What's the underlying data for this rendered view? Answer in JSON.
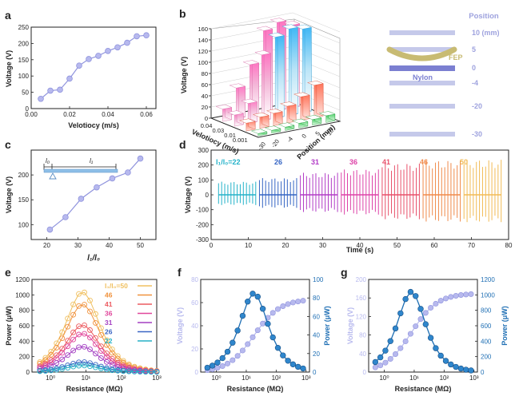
{
  "panels": {
    "a": {
      "label": "a"
    },
    "b": {
      "label": "b"
    },
    "c": {
      "label": "c"
    },
    "d": {
      "label": "d"
    },
    "e": {
      "label": "e"
    },
    "f": {
      "label": "f"
    },
    "g": {
      "label": "g"
    }
  },
  "colors": {
    "lavender": "#b7b9ee",
    "lavender_edge": "#8f93dd",
    "blue": "#1f6fb4",
    "legend_gray": "#c5c9ea"
  },
  "chart_data": [
    {
      "id": "a",
      "type": "line",
      "xlabel": "Velotiocy (m/s)",
      "ylabel": "Voltage (V)",
      "xlim": [
        0,
        0.065
      ],
      "ylim": [
        0,
        250
      ],
      "xticks": [
        "0.00",
        "0.02",
        "0.04",
        "0.06"
      ],
      "yticks": [
        "0",
        "50",
        "100",
        "150",
        "200",
        "250"
      ],
      "x": [
        0.005,
        0.01,
        0.015,
        0.02,
        0.025,
        0.03,
        0.035,
        0.04,
        0.045,
        0.05,
        0.055,
        0.06
      ],
      "y": [
        30,
        55,
        58,
        92,
        132,
        152,
        162,
        177,
        188,
        202,
        222,
        225
      ]
    },
    {
      "id": "b",
      "type": "bar3d",
      "xlabel": "Velotiocy (m/s)",
      "ylabel": "Position (mm)",
      "zlabel": "Voltage (V)",
      "zticks": [
        "0",
        "20",
        "40",
        "60",
        "80",
        "100",
        "120",
        "140",
        "160"
      ],
      "velocity_ticks": [
        "0.04",
        "0.03",
        "0.01",
        "0.001"
      ],
      "position_ticks": [
        "-30",
        "-20",
        "-4",
        "0",
        "5",
        "10"
      ]
    },
    {
      "id": "b_legend",
      "type": "table",
      "header": "Position",
      "rows": [
        "10 (mm)",
        "5",
        "0",
        "-4",
        "-20",
        "-30"
      ],
      "labels": {
        "top": "FEP",
        "bottom": "Nylon"
      }
    },
    {
      "id": "c",
      "type": "line",
      "xlabel": "l₁/l₀",
      "ylabel": "Voltage (V)",
      "xlim": [
        15,
        55
      ],
      "ylim": [
        70,
        250
      ],
      "xticks": [
        "20",
        "30",
        "40",
        "50"
      ],
      "yticks": [
        "100",
        "150",
        "200"
      ],
      "x": [
        21,
        26,
        31,
        36,
        41,
        46,
        50
      ],
      "y": [
        90,
        115,
        152,
        175,
        193,
        205,
        233
      ],
      "schematic": {
        "l0": "l₀",
        "l1": "l₁"
      }
    },
    {
      "id": "d",
      "type": "line",
      "xlabel": "Time (s)",
      "ylabel": "Voltage (V)",
      "xlim": [
        0,
        80
      ],
      "ylim": [
        -300,
        300
      ],
      "xticks": [
        "0",
        "10",
        "20",
        "30",
        "40",
        "50",
        "60",
        "70",
        "80"
      ],
      "yticks": [
        "-300",
        "-200",
        "-100",
        "0",
        "100",
        "200",
        "300"
      ],
      "series": [
        {
          "name": "l₁/l₀=22",
          "color": "#23b2c9",
          "range": [
            2,
            12
          ],
          "amplitude": 88
        },
        {
          "name": "26",
          "color": "#3565c4",
          "range": [
            13,
            23
          ],
          "amplitude": 112
        },
        {
          "name": "31",
          "color": "#b23cc6",
          "range": [
            24,
            34
          ],
          "amplitude": 148
        },
        {
          "name": "36",
          "color": "#dd42a8",
          "range": [
            35,
            45
          ],
          "amplitude": 170
        },
        {
          "name": "41",
          "color": "#e8506a",
          "range": [
            46,
            56
          ],
          "amplitude": 210
        },
        {
          "name": "46",
          "color": "#f08a4a",
          "range": [
            57,
            67
          ],
          "amplitude": 230
        },
        {
          "name": "50",
          "color": "#f2bb55",
          "range": [
            68,
            78
          ],
          "amplitude": 235
        }
      ]
    },
    {
      "id": "e",
      "type": "scatter",
      "xlabel": "Resistance (MΩ)",
      "ylabel": "Power (μW)",
      "xscale": "log",
      "xlim": [
        0.3,
        1000
      ],
      "ylim": [
        0,
        1200
      ],
      "xticks": [
        "10⁰",
        "10¹",
        "10²",
        "10³"
      ],
      "yticks": [
        "0",
        "200",
        "400",
        "600",
        "800",
        "1000",
        "1200"
      ],
      "series": [
        {
          "name": "l₁/l₀=50",
          "color": "#f0c060",
          "peak": 1040
        },
        {
          "name": "46",
          "color": "#f0923c",
          "peak": 880
        },
        {
          "name": "41",
          "color": "#ec5b60",
          "peak": 610
        },
        {
          "name": "36",
          "color": "#e0479b",
          "peak": 500
        },
        {
          "name": "31",
          "color": "#a33fc2",
          "peak": 330
        },
        {
          "name": "26",
          "color": "#3a66c4",
          "peak": 130
        },
        {
          "name": "22",
          "color": "#27b1c6",
          "peak": 85
        }
      ]
    },
    {
      "id": "f",
      "type": "line",
      "xlabel": "Resistance (MΩ)",
      "ylabel": "Voltage (V)",
      "y2label": "Power (μW)",
      "xscale": "log",
      "yticks": [
        "0",
        "20",
        "40",
        "60",
        "80"
      ],
      "y2ticks": [
        "0",
        "20",
        "40",
        "60",
        "80",
        "100"
      ],
      "xticks": [
        "10⁰",
        "10¹",
        "10²",
        "10³"
      ],
      "voltage_max": 63,
      "power_peak": 85,
      "power_peak_at": 18
    },
    {
      "id": "g",
      "type": "line",
      "xlabel": "Resistance (MΩ)",
      "ylabel": "Voltage (V)",
      "y2label": "Power (μW)",
      "xscale": "log",
      "yticks": [
        "0",
        "40",
        "80",
        "120",
        "160",
        "200"
      ],
      "y2ticks": [
        "0",
        "200",
        "400",
        "600",
        "800",
        "1000",
        "1200"
      ],
      "xticks": [
        "10⁰",
        "10¹",
        "10²",
        "10³"
      ],
      "voltage_max": 170,
      "power_peak": 1040,
      "power_peak_at": 8
    }
  ]
}
